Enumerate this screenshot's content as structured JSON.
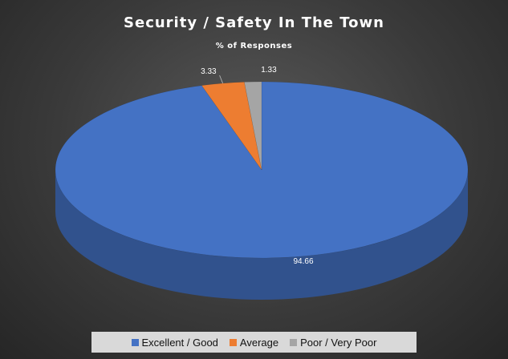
{
  "chart_data": {
    "type": "pie",
    "title": "Security / Safety In The Town",
    "subtitle": "% of Responses",
    "categories": [
      "Excellent / Good",
      "Average",
      "Poor / Very Poor"
    ],
    "values": [
      94.66,
      3.33,
      1.33
    ],
    "data_labels": [
      "94.66",
      "3.33",
      "1.33"
    ],
    "colors": [
      "#4472c4",
      "#ed7d31",
      "#a5a5a5"
    ],
    "legend_position": "bottom",
    "style": "3d-pie"
  }
}
